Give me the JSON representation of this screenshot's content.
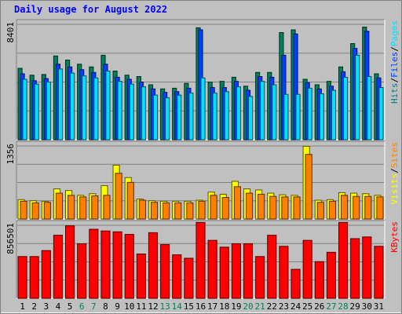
{
  "chart_data": {
    "type": "bar",
    "title": "Daily usage for August 2022",
    "x": [
      1,
      2,
      3,
      4,
      5,
      6,
      7,
      8,
      9,
      10,
      11,
      12,
      13,
      14,
      15,
      16,
      17,
      18,
      19,
      20,
      21,
      22,
      23,
      24,
      25,
      26,
      27,
      28,
      29,
      30,
      31
    ],
    "weekend_days": [
      6,
      7,
      13,
      14,
      20,
      21,
      27,
      28
    ],
    "panels": [
      {
        "name": "pages-files-hits",
        "ymax_label": "8401",
        "ymax": 8401,
        "legend": [
          "Pages",
          "Files",
          "Hits"
        ],
        "series": [
          {
            "name": "Hits",
            "color": "#00805c",
            "values": [
              5200,
              4700,
              4750,
              6100,
              5800,
              5500,
              5300,
              6150,
              5000,
              4700,
              4600,
              4000,
              3700,
              3750,
              4100,
              8150,
              4200,
              4250,
              4550,
              3900,
              4900,
              4900,
              7800,
              8000,
              4400,
              4000,
              4250,
              5300,
              7000,
              8200,
              4800
            ]
          },
          {
            "name": "Files",
            "color": "#0040ff",
            "values": [
              4800,
              4300,
              4450,
              5500,
              5300,
              5100,
              4900,
              5500,
              4550,
              4400,
              4200,
              3700,
              3450,
              3500,
              3750,
              8000,
              3800,
              3800,
              4250,
              3600,
              4600,
              4550,
              6150,
              7700,
              4150,
              3700,
              3900,
              4950,
              6650,
              7900,
              4500
            ]
          },
          {
            "name": "Pages",
            "color": "#00e0ff",
            "values": [
              4400,
              4050,
              4200,
              5150,
              4850,
              4650,
              4500,
              5000,
              4250,
              4050,
              3850,
              3250,
              3050,
              3250,
              3400,
              4500,
              3400,
              3500,
              3850,
              3150,
              4250,
              4000,
              3300,
              3300,
              3750,
              3350,
              3600,
              4550,
              6150,
              4600,
              3800
            ]
          }
        ]
      },
      {
        "name": "sites-visits",
        "ymax_label": "1356",
        "ymax": 1356,
        "legend": [
          "Sites",
          "Visits"
        ],
        "series": [
          {
            "name": "Visits",
            "color": "#ffff00",
            "values": [
              360,
              340,
              330,
              560,
              530,
              440,
              470,
              620,
              1000,
              770,
              370,
              340,
              330,
              330,
              330,
              350,
              500,
              460,
              700,
              560,
              540,
              480,
              450,
              440,
              1350,
              350,
              360,
              490,
              480,
              470,
              440
            ]
          },
          {
            "name": "Sites",
            "color": "#ff8000",
            "values": [
              330,
              300,
              310,
              480,
              440,
              410,
              430,
              440,
              850,
              680,
              350,
              310,
              300,
              300,
              300,
              330,
              440,
              400,
              600,
              480,
              460,
              420,
              410,
              410,
              1200,
              310,
              330,
              440,
              420,
              420,
              410
            ]
          }
        ]
      },
      {
        "name": "kbytes",
        "ymax_label": "856501",
        "ymax": 856501,
        "legend": [
          "KBytes"
        ],
        "series": [
          {
            "name": "KBytes",
            "color": "#ff0000",
            "values": [
              490000,
              490000,
              560000,
              740000,
              850000,
              640000,
              810000,
              790000,
              780000,
              750000,
              520000,
              770000,
              630000,
              510000,
              470000,
              890000,
              680000,
              600000,
              640000,
              640000,
              490000,
              740000,
              610000,
              340000,
              680000,
              430000,
              540000,
              890000,
              700000,
              720000,
              610000
            ]
          }
        ]
      }
    ]
  }
}
